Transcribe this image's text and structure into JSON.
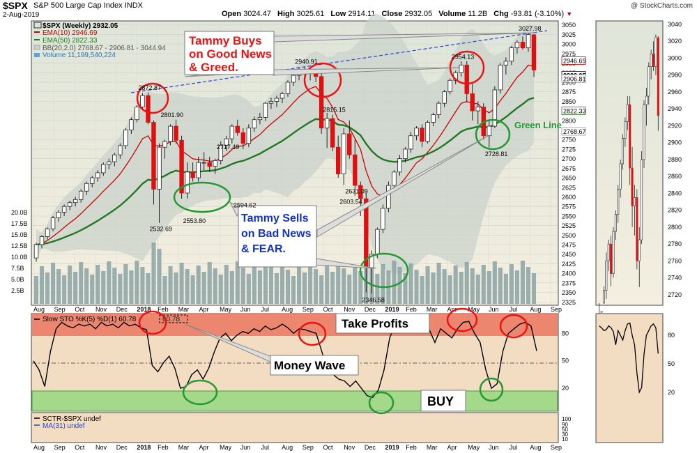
{
  "header": {
    "symbol": "$SPX",
    "name": "S&P 500 Large Cap Index",
    "exchange": "INDX",
    "date": "2-Aug-2019",
    "open_label": "Open",
    "open": "3024.47",
    "high_label": "High",
    "high": "3025.61",
    "low_label": "Low",
    "low": "2914.11",
    "close_label": "Close",
    "close": "2932.05",
    "volume_label": "Volume",
    "volume": "11.2B",
    "chg_label": "Chg",
    "chg": "-93.81 (-3.10%)",
    "credit": "@ StockCharts.com"
  },
  "legend": {
    "main": "$SPX (Weekly) 2932.05",
    "ema10": "EMA(10) 2946.69",
    "ema50": "EMA(50) 2822.33",
    "bb": "BB(20,2.0) 2768.67 - 2906.81 - 3044.94",
    "volume": "Volume 11,199,540,224",
    "sto": "Slow STO %K(5) %D(1) 60.78",
    "sto_box": "60.78",
    "sctr": "SCTR-$SPX undef",
    "ma31": "MA(31) undef"
  },
  "annotations": {
    "tammy_buys": [
      "Tammy Buys",
      "on Good News",
      "& Greed."
    ],
    "tammy_sells": [
      "Tammy Sells",
      "on Bad News",
      "& FEAR."
    ],
    "green_line": "Green Line",
    "take_profits": "Take Profits",
    "money_wave": "Money Wave",
    "buy": "BUY"
  },
  "colors": {
    "bull": "#ffffff",
    "bear": "#dd1111",
    "candle_outline": "#000000",
    "ema10": "#cc0000",
    "ema50": "#227722",
    "bb_fill": "#c9d1cb",
    "volume": "#8aa2a4",
    "trendline": "#2244dd",
    "sto_overbought": "#ec7c66",
    "sto_oversold": "#a4d88a",
    "annotation_red": "#ee1111",
    "annotation_green": "#229933",
    "annotation_blue": "#1133cc",
    "panel_bg": "#e8e6da"
  },
  "chart_data": [
    {
      "type": "candlestick",
      "title": "$SPX (Weekly)",
      "x_labels": [
        "Aug",
        "Sep",
        "Oct",
        "Nov",
        "Dec",
        "2018",
        "Feb",
        "Mar",
        "Apr",
        "May",
        "Jun",
        "Jul",
        "Aug",
        "Sep",
        "Oct",
        "Nov",
        "Dec",
        "2019",
        "Feb",
        "Mar",
        "Apr",
        "May",
        "Jun",
        "Jul",
        "Aug",
        "Sep"
      ],
      "y_ticks": [
        "3050",
        "3025",
        "3000",
        "2975",
        "2950",
        "2925",
        "2900",
        "2875",
        "2850",
        "2825",
        "2800",
        "2775",
        "2750",
        "2725",
        "2700",
        "2675",
        "2650",
        "2625",
        "2600",
        "2575",
        "2550",
        "2525",
        "2500",
        "2475",
        "2450",
        "2425",
        "2400",
        "2375",
        "2350",
        "2325"
      ],
      "ylim": [
        2320,
        3055
      ],
      "labeled_prices": [
        "2872.87",
        "2801.90",
        "2717.49",
        "2594.62",
        "2532.69",
        "2553.80",
        "2940.91",
        "2815.15",
        "2631.09",
        "2603.54",
        "2346.58",
        "2954.13",
        "2728.81",
        "3027.98"
      ],
      "price_tags": [
        "2946.69",
        "2932.05",
        "2906.81",
        "2822.33",
        "2768.67"
      ],
      "volume_ticks": [
        "20.0B",
        "17.5B",
        "15.0B",
        "12.5B",
        "10.0B",
        "7.5B",
        "5.0B",
        "2.5B"
      ],
      "ohlc": [
        [
          2440,
          2480,
          2430,
          2475
        ],
        [
          2475,
          2500,
          2465,
          2496
        ],
        [
          2496,
          2520,
          2488,
          2516
        ],
        [
          2516,
          2550,
          2510,
          2545
        ],
        [
          2545,
          2565,
          2535,
          2560
        ],
        [
          2560,
          2580,
          2550,
          2575
        ],
        [
          2575,
          2590,
          2565,
          2585
        ],
        [
          2585,
          2600,
          2575,
          2593
        ],
        [
          2593,
          2620,
          2585,
          2615
        ],
        [
          2615,
          2640,
          2605,
          2635
        ],
        [
          2635,
          2655,
          2625,
          2650
        ],
        [
          2650,
          2670,
          2640,
          2663
        ],
        [
          2663,
          2690,
          2655,
          2685
        ],
        [
          2685,
          2700,
          2672,
          2692
        ],
        [
          2692,
          2715,
          2680,
          2710
        ],
        [
          2710,
          2740,
          2700,
          2734
        ],
        [
          2734,
          2780,
          2725,
          2775
        ],
        [
          2775,
          2808,
          2765,
          2802
        ],
        [
          2802,
          2840,
          2795,
          2835
        ],
        [
          2835,
          2872,
          2828,
          2865
        ],
        [
          2865,
          2873,
          2790,
          2795
        ],
        [
          2795,
          2800,
          2580,
          2620
        ],
        [
          2620,
          2740,
          2532,
          2730
        ],
        [
          2730,
          2750,
          2700,
          2745
        ],
        [
          2745,
          2790,
          2735,
          2785
        ],
        [
          2785,
          2802,
          2740,
          2748
        ],
        [
          2748,
          2760,
          2595,
          2610
        ],
        [
          2610,
          2690,
          2595,
          2665
        ],
        [
          2665,
          2690,
          2640,
          2650
        ],
        [
          2650,
          2705,
          2640,
          2690
        ],
        [
          2690,
          2717,
          2670,
          2690
        ],
        [
          2690,
          2705,
          2665,
          2680
        ],
        [
          2680,
          2700,
          2660,
          2695
        ],
        [
          2695,
          2745,
          2685,
          2735
        ],
        [
          2735,
          2760,
          2720,
          2752
        ],
        [
          2752,
          2790,
          2740,
          2785
        ],
        [
          2785,
          2802,
          2760,
          2768
        ],
        [
          2768,
          2780,
          2725,
          2740
        ],
        [
          2740,
          2790,
          2730,
          2780
        ],
        [
          2780,
          2810,
          2770,
          2802
        ],
        [
          2802,
          2820,
          2790,
          2808
        ],
        [
          2808,
          2848,
          2798,
          2845
        ],
        [
          2845,
          2860,
          2830,
          2850
        ],
        [
          2850,
          2865,
          2835,
          2858
        ],
        [
          2858,
          2875,
          2845,
          2870
        ],
        [
          2870,
          2905,
          2862,
          2900
        ],
        [
          2900,
          2925,
          2890,
          2918
        ],
        [
          2918,
          2940,
          2905,
          2930
        ],
        [
          2930,
          2941,
          2915,
          2925
        ],
        [
          2925,
          2935,
          2905,
          2928
        ],
        [
          2928,
          2935,
          2900,
          2915
        ],
        [
          2915,
          2925,
          2765,
          2780
        ],
        [
          2780,
          2820,
          2728,
          2805
        ],
        [
          2805,
          2815,
          2720,
          2730
        ],
        [
          2730,
          2760,
          2650,
          2660
        ],
        [
          2660,
          2780,
          2631,
          2765
        ],
        [
          2765,
          2800,
          2700,
          2710
        ],
        [
          2710,
          2750,
          2603,
          2630
        ],
        [
          2630,
          2640,
          2550,
          2595
        ],
        [
          2595,
          2610,
          2350,
          2415
        ],
        [
          2415,
          2460,
          2347,
          2450
        ],
        [
          2450,
          2520,
          2440,
          2515
        ],
        [
          2515,
          2580,
          2505,
          2570
        ],
        [
          2570,
          2640,
          2560,
          2630
        ],
        [
          2630,
          2670,
          2620,
          2665
        ],
        [
          2665,
          2710,
          2655,
          2700
        ],
        [
          2700,
          2730,
          2690,
          2725
        ],
        [
          2725,
          2770,
          2715,
          2760
        ],
        [
          2760,
          2785,
          2748,
          2780
        ],
        [
          2780,
          2790,
          2730,
          2745
        ],
        [
          2745,
          2800,
          2740,
          2795
        ],
        [
          2795,
          2820,
          2785,
          2815
        ],
        [
          2815,
          2850,
          2805,
          2845
        ],
        [
          2845,
          2880,
          2835,
          2875
        ],
        [
          2875,
          2910,
          2868,
          2905
        ],
        [
          2905,
          2930,
          2895,
          2925
        ],
        [
          2925,
          2955,
          2915,
          2945
        ],
        [
          2945,
          2955,
          2850,
          2870
        ],
        [
          2870,
          2895,
          2800,
          2825
        ],
        [
          2825,
          2850,
          2790,
          2835
        ],
        [
          2835,
          2845,
          2750,
          2760
        ],
        [
          2760,
          2800,
          2729,
          2785
        ],
        [
          2785,
          2890,
          2780,
          2880
        ],
        [
          2880,
          2950,
          2870,
          2945
        ],
        [
          2945,
          2965,
          2920,
          2955
        ],
        [
          2955,
          2995,
          2945,
          2990
        ],
        [
          2990,
          3010,
          2975,
          3005
        ],
        [
          3005,
          3020,
          2985,
          2990
        ],
        [
          2990,
          3028,
          2980,
          3025
        ],
        [
          3024,
          3026,
          2914,
          2932
        ]
      ]
    },
    {
      "type": "line",
      "title": "Slow STO %K(5) %D(1)",
      "y_ticks": [
        "80",
        "50",
        "20"
      ],
      "ylim": [
        -5,
        100
      ],
      "values": [
        50,
        40,
        22,
        60,
        85,
        92,
        88,
        86,
        90,
        88,
        90,
        85,
        92,
        88,
        90,
        86,
        92,
        88,
        90,
        86,
        84,
        45,
        38,
        48,
        55,
        42,
        20,
        22,
        35,
        40,
        30,
        42,
        60,
        75,
        80,
        72,
        78,
        82,
        80,
        85,
        82,
        88,
        84,
        86,
        90,
        86,
        80,
        85,
        84,
        82,
        80,
        60,
        40,
        35,
        30,
        28,
        22,
        28,
        20,
        12,
        10,
        18,
        40,
        75,
        90,
        88,
        85,
        86,
        90,
        88,
        84,
        70,
        85,
        80,
        75,
        85,
        92,
        93,
        80,
        70,
        40,
        20,
        25,
        60,
        80,
        85,
        90,
        92,
        88,
        60.78
      ]
    }
  ]
}
